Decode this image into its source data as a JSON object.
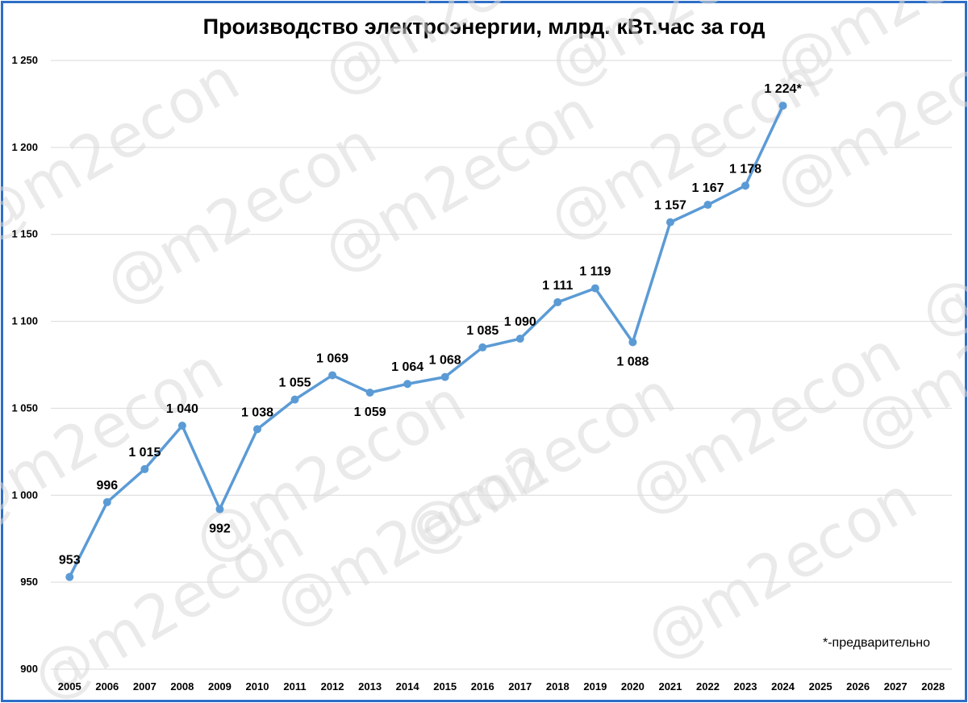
{
  "chart_data": {
    "type": "line",
    "title": "Производство электроэнергии, млрд. кВт.час за год",
    "categories": [
      "2005",
      "2006",
      "2007",
      "2008",
      "2009",
      "2010",
      "2011",
      "2012",
      "2013",
      "2014",
      "2015",
      "2016",
      "2017",
      "2018",
      "2019",
      "2020",
      "2021",
      "2022",
      "2023",
      "2024",
      "2025",
      "2026",
      "2027",
      "2028"
    ],
    "series": [
      {
        "values": [
          953,
          996,
          1015,
          1040,
          992,
          1038,
          1055,
          1069,
          1059,
          1064,
          1068,
          1085,
          1090,
          1111,
          1119,
          1088,
          1157,
          1167,
          1178,
          1224,
          null,
          null,
          null,
          null
        ],
        "labels": [
          "953",
          "996",
          "1 015",
          "1 040",
          "992",
          "1 038",
          "1 055",
          "1 069",
          "1 059",
          "1 064",
          "1 068",
          "1 085",
          "1 090",
          "1 111",
          "1 119",
          "1 088",
          "1 157",
          "1 167",
          "1 178",
          "1 224*",
          "",
          "",
          "",
          ""
        ],
        "color": "#5b9bd5"
      }
    ],
    "ylim": [
      900,
      1250
    ],
    "yticks": [
      900,
      950,
      1000,
      1050,
      1100,
      1150,
      1200,
      1250
    ],
    "ytick_labels": [
      "900",
      "950",
      "1 000",
      "1 050",
      "1 100",
      "1 150",
      "1 200",
      "1 250"
    ],
    "grid": true,
    "note": "*-предварительно"
  },
  "watermark": "@m2econ"
}
